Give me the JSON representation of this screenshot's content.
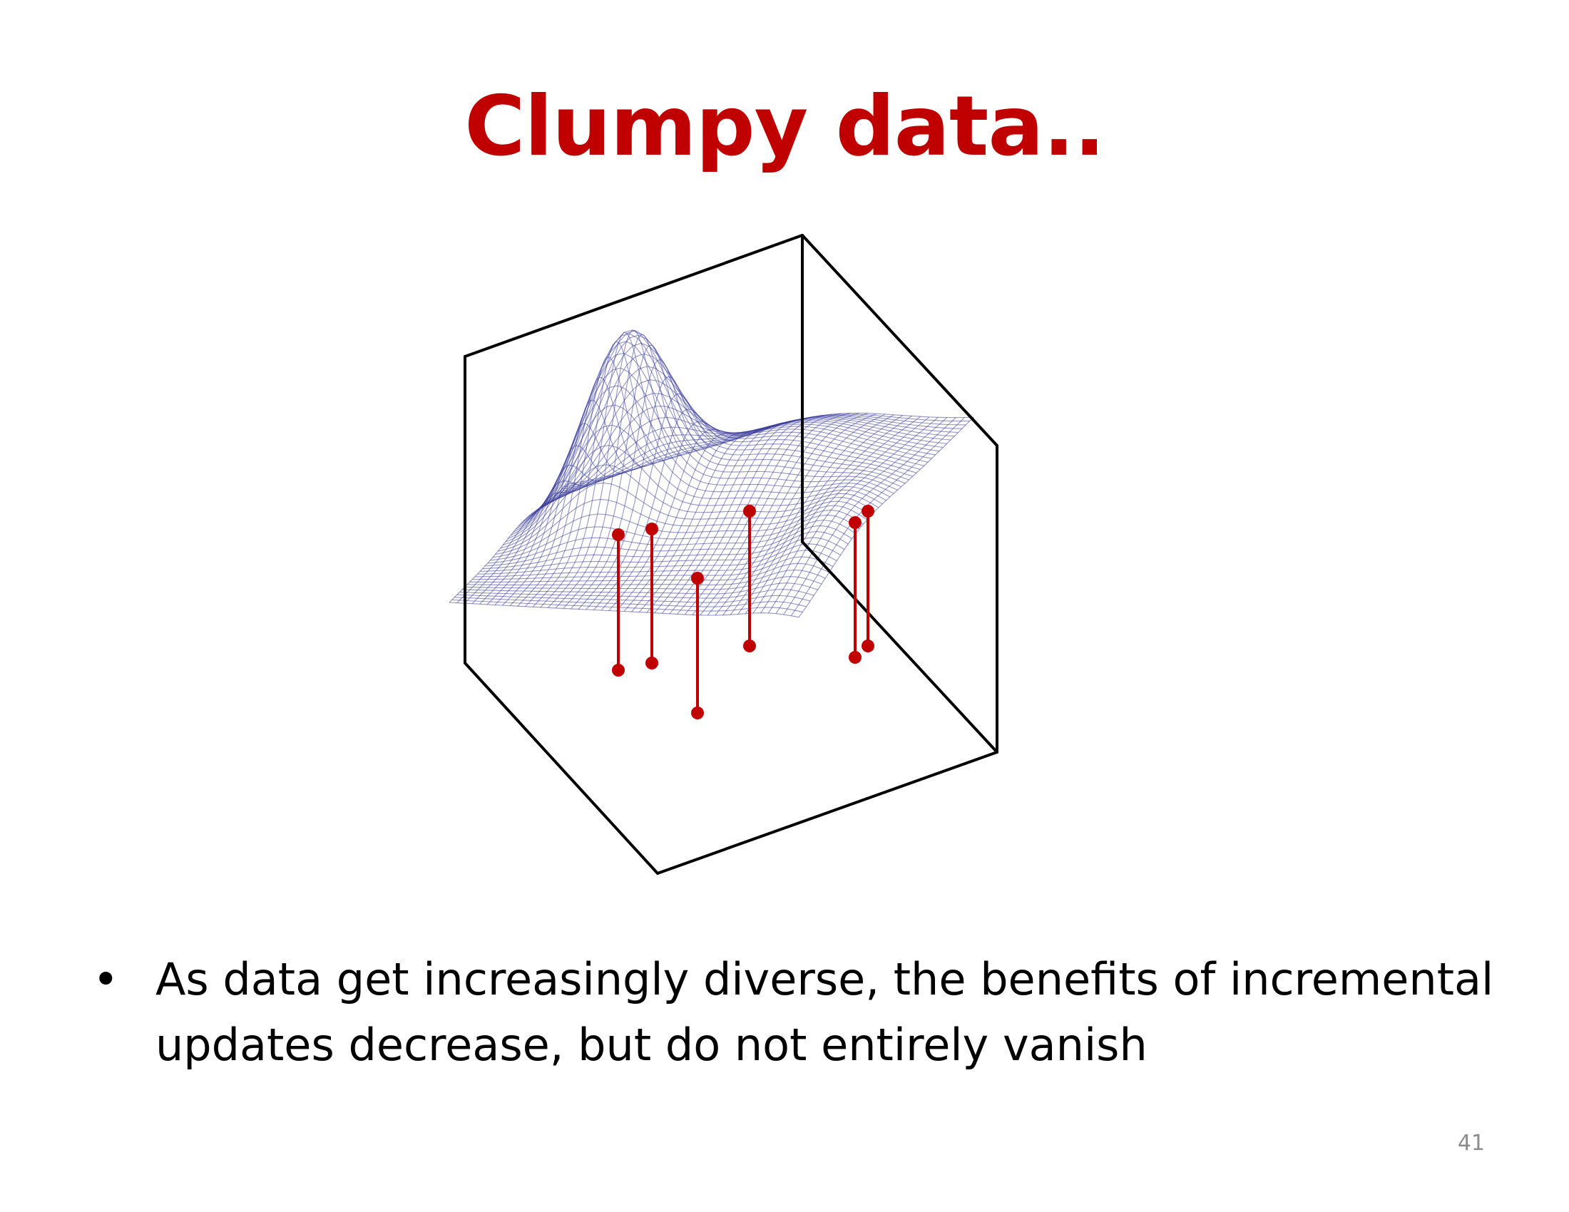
{
  "slide": {
    "title": "Clumpy data..",
    "bullets": [
      "As data get increasingly diverse, the benefits of incremental updates decrease, but do not entirely vanish"
    ],
    "bullet_symbol": "•",
    "slide_number": "41"
  },
  "figure": {
    "surface_color": "#3a3d9a",
    "stem_color": "#c00000",
    "box_color": "#000000",
    "surface_icon": "wireframe-surface",
    "stem_count": 7
  }
}
